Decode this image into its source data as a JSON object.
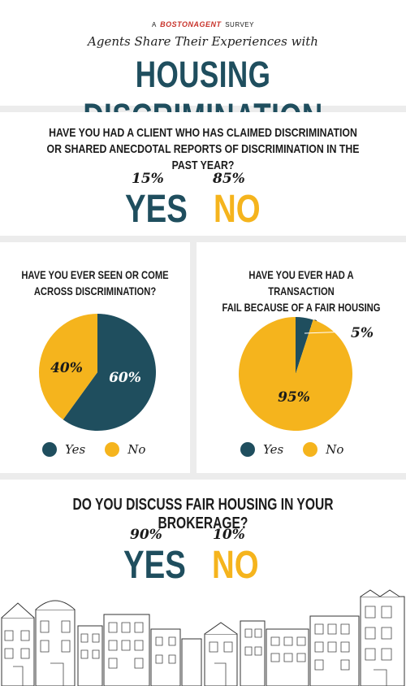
{
  "header": {
    "brand_prefix": "A",
    "brand_logo": "BOSTONAGENT",
    "brand_suffix": "SURVEY",
    "subtitle": "Agents Share Their Experiences with",
    "title": "HOUSING DISCRIMINATION"
  },
  "colors": {
    "yes": "#1f4e5e",
    "no": "#f5b41d"
  },
  "q1": {
    "line1": "HAVE YOU HAD A CLIENT WHO HAS CLAIMED DISCRIMINATION",
    "line2": "OR SHARED ANECDOTAL REPORTS OF DISCRIMINATION IN THE PAST YEAR?",
    "yes_pct": "15%",
    "no_pct": "85%",
    "yes_label": "YES",
    "no_label": "NO"
  },
  "q2": {
    "line1": "HAVE YOU EVER SEEN OR COME",
    "line2": "ACROSS DISCRIMINATION?",
    "legend_yes": "Yes",
    "legend_no": "No"
  },
  "q3": {
    "line1": "HAVE YOU EVER HAD A TRANSACTION",
    "line2": "FAIL BECAUSE OF A FAIR HOUSING ISSUE?",
    "legend_yes": "Yes",
    "legend_no": "No"
  },
  "q4": {
    "text": "DO YOU DISCUSS FAIR HOUSING IN YOUR BROKERAGE?",
    "yes_pct": "90%",
    "no_pct": "10%",
    "yes_label": "YES",
    "no_label": "NO"
  },
  "chart_data": [
    {
      "type": "table",
      "title": "HAVE YOU HAD A CLIENT WHO HAS CLAIMED DISCRIMINATION OR SHARED ANECDOTAL REPORTS OF DISCRIMINATION IN THE PAST YEAR?",
      "categories": [
        "YES",
        "NO"
      ],
      "values": [
        15,
        85
      ]
    },
    {
      "type": "pie",
      "title": "HAVE YOU EVER SEEN OR COME ACROSS DISCRIMINATION?",
      "categories": [
        "Yes",
        "No"
      ],
      "values": [
        60,
        40
      ],
      "labels": [
        "60%",
        "40%"
      ],
      "legend": "bottom"
    },
    {
      "type": "pie",
      "title": "HAVE YOU EVER HAD A TRANSACTION FAIL BECAUSE OF A FAIR HOUSING ISSUE?",
      "categories": [
        "Yes",
        "No"
      ],
      "values": [
        5,
        95
      ],
      "labels": [
        "5%",
        "95%"
      ],
      "legend": "bottom"
    },
    {
      "type": "table",
      "title": "DO YOU DISCUSS FAIR HOUSING IN YOUR BROKERAGE?",
      "categories": [
        "YES",
        "NO"
      ],
      "values": [
        90,
        10
      ]
    }
  ]
}
